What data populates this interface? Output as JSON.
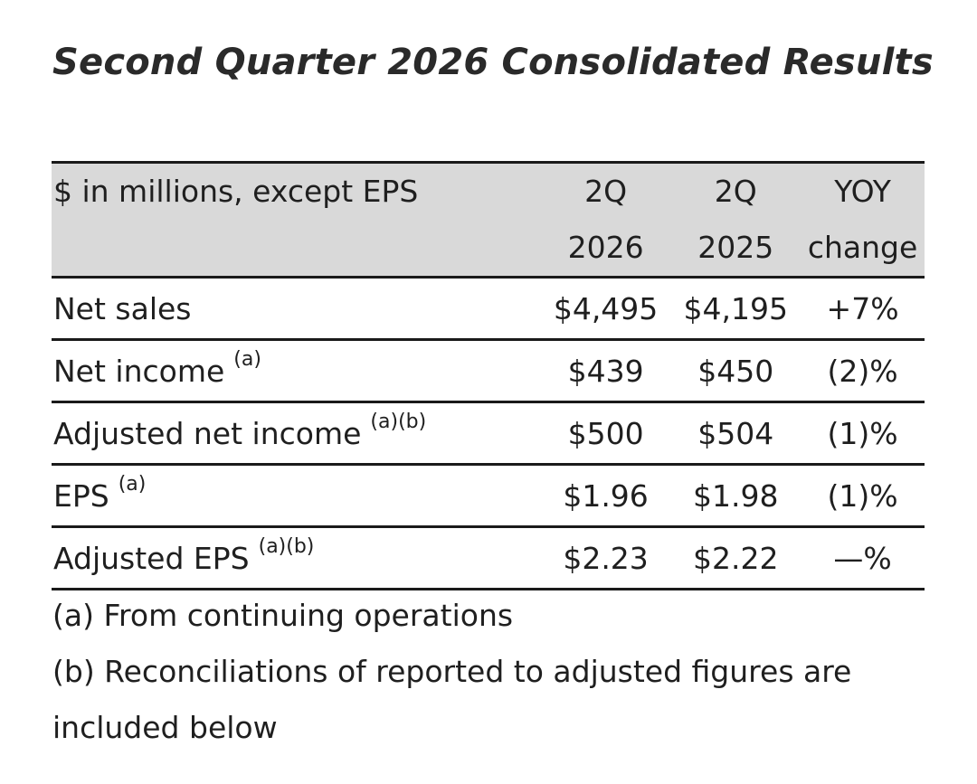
{
  "title": "Second Quarter 2026 Consolidated Results",
  "table": {
    "headers": {
      "label": "$ in millions, except EPS",
      "col1_line1": "2Q",
      "col1_line2": "2026",
      "col2_line1": "2Q",
      "col2_line2": "2025",
      "col3_line1": "YOY",
      "col3_line2": "change"
    },
    "rows": [
      {
        "label": "Net sales",
        "footnote": "",
        "q2026": "$4,495",
        "q2025": "$4,195",
        "yoy": "+7%"
      },
      {
        "label": "Net income",
        "footnote": "(a)",
        "q2026": "$439",
        "q2025": "$450",
        "yoy": "(2)%"
      },
      {
        "label": "Adjusted net income",
        "footnote": "(a)(b)",
        "q2026": "$500",
        "q2025": "$504",
        "yoy": "(1)%"
      },
      {
        "label": "EPS",
        "footnote": "(a)",
        "q2026": "$1.96",
        "q2025": "$1.98",
        "yoy": "(1)%"
      },
      {
        "label": "Adjusted EPS",
        "footnote": "(a)(b)",
        "q2026": "$2.23",
        "q2025": "$2.22",
        "yoy": "—%"
      }
    ]
  },
  "notes": {
    "a": "(a) From continuing operations",
    "b": "(b) Reconciliations of reported to adjusted figures are included below"
  }
}
